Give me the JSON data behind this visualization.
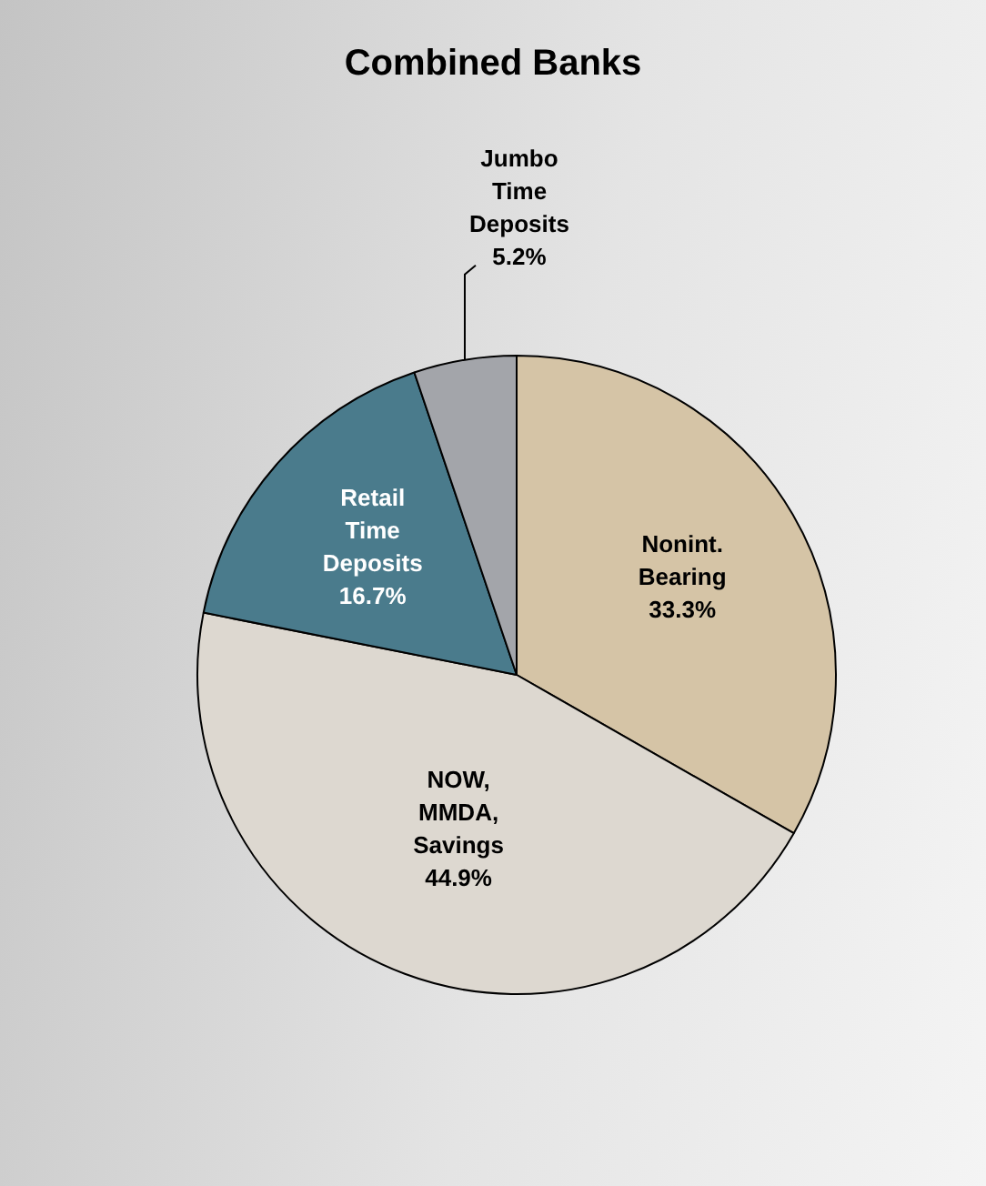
{
  "chart_data": {
    "type": "pie",
    "title": "Combined Banks",
    "categories": [
      "Nonint. Bearing",
      "NOW, MMDA, Savings",
      "Retail Time Deposits",
      "Jumbo Time Deposits"
    ],
    "values": [
      33.3,
      44.9,
      16.7,
      5.2
    ],
    "value_labels": [
      "33.3%",
      "44.9%",
      "16.7%",
      "5.2%"
    ],
    "colors": [
      "#d5c4a6",
      "#ddd8d0",
      "#4a7b8c",
      "#a3a5aa"
    ],
    "legend": false
  }
}
